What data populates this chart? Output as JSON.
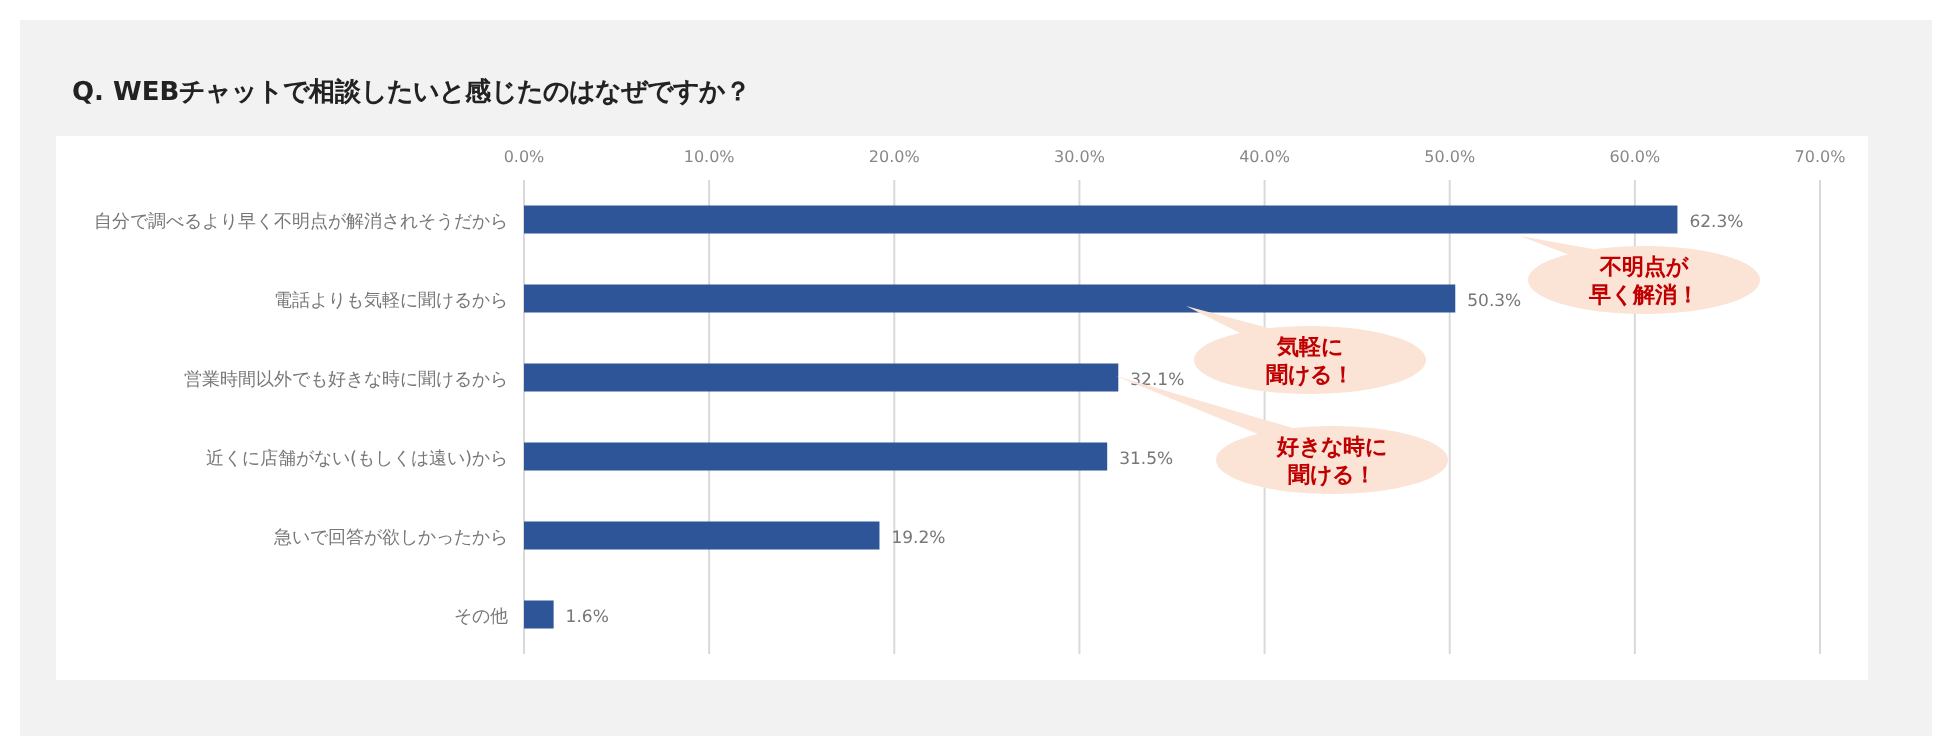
{
  "chart_data": {
    "type": "bar",
    "orientation": "horizontal",
    "title": "Q. WEBチャットで相談したいと感じたのはなぜですか？",
    "categories": [
      "自分で調べるより早く不明点が解消されそうだから",
      "電話よりも気軽に聞けるから",
      "営業時間以外でも好きな時に聞けるから",
      "近くに店舗がない(もしくは遠い)から",
      "急いで回答が欲しかったから",
      "その他"
    ],
    "values": [
      62.3,
      50.3,
      32.1,
      31.5,
      19.2,
      1.6
    ],
    "value_labels": [
      "62.3%",
      "50.3%",
      "32.1%",
      "31.5%",
      "19.2%",
      "1.6%"
    ],
    "color": "#2e5597",
    "xlim": [
      0,
      70
    ],
    "xticks": [
      {
        "value": 0,
        "label": "0.0%"
      },
      {
        "value": 10,
        "label": "10.0%"
      },
      {
        "value": 20,
        "label": "20.0%"
      },
      {
        "value": 30,
        "label": "30.0%"
      },
      {
        "value": 40,
        "label": "40.0%"
      },
      {
        "value": 50,
        "label": "50.0%"
      },
      {
        "value": 60,
        "label": "60.0%"
      },
      {
        "value": 70,
        "label": "70.0%"
      }
    ],
    "grid": "x",
    "annotations": [
      "不明点が早く解消！",
      "気軽に聞ける！",
      "好きな時に聞ける！"
    ]
  }
}
